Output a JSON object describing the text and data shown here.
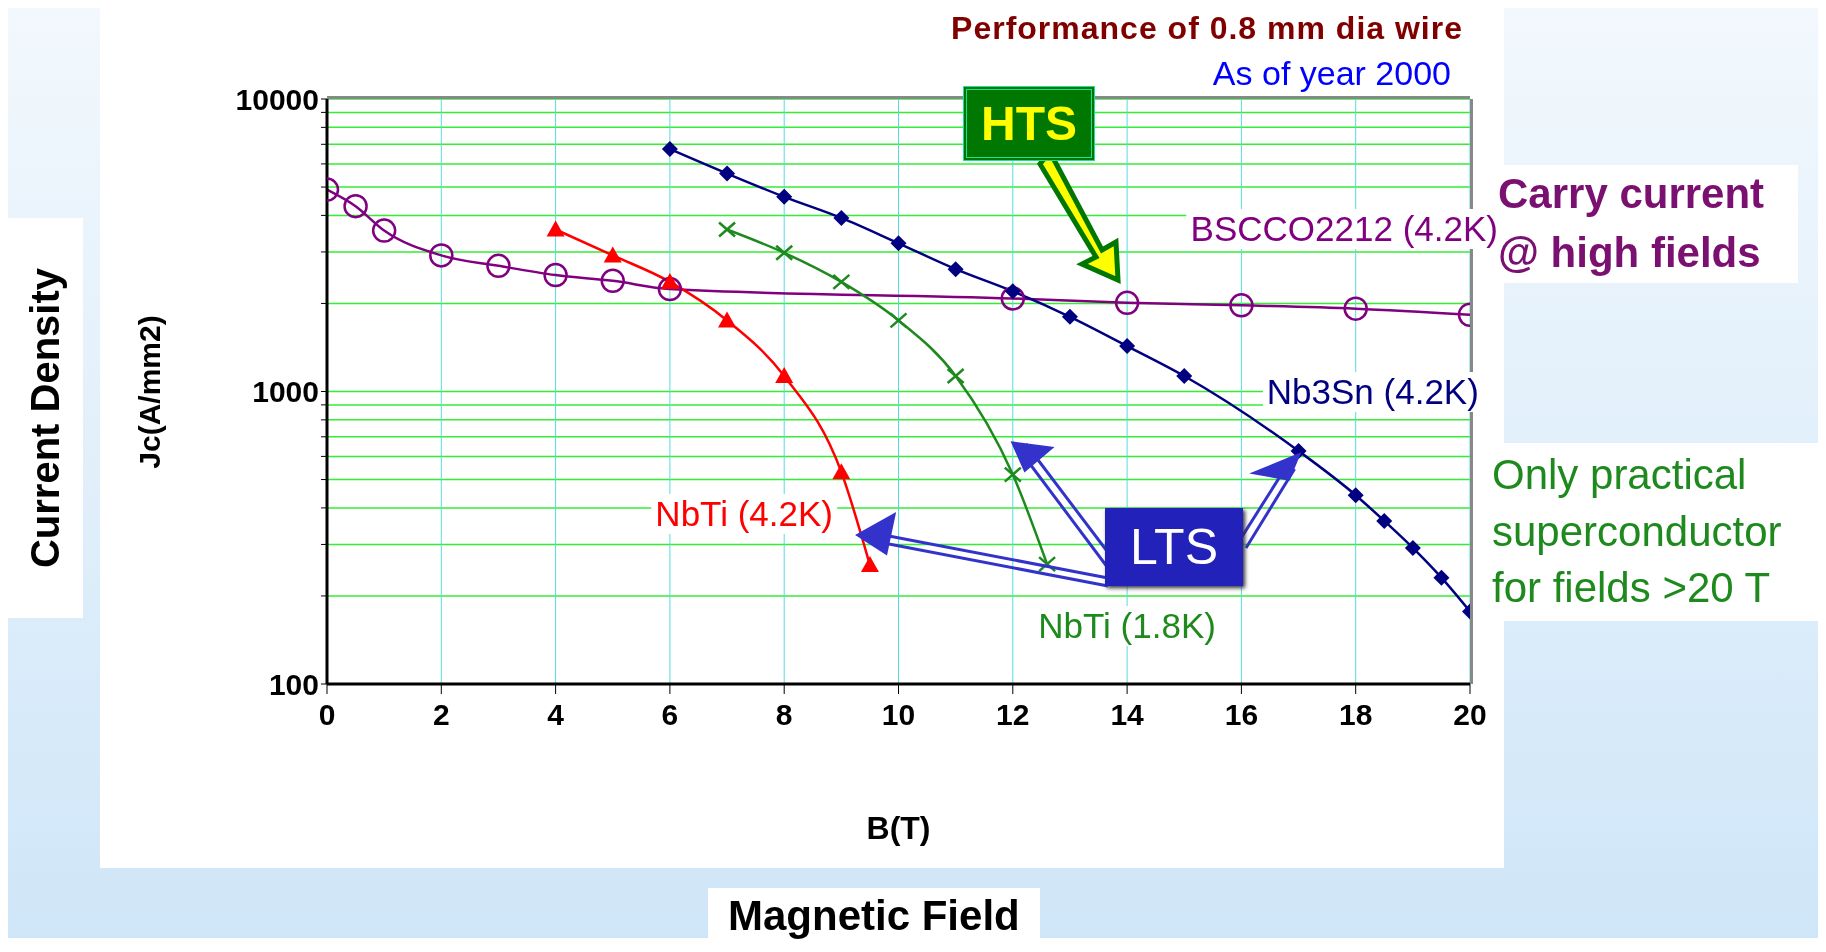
{
  "chart_data": {
    "type": "line",
    "title": "Performance of 0.8 mm dia wire",
    "subtitle": "As of year 2000",
    "xlabel": "B(T)",
    "ylabel": "Jc(A/mm2)",
    "annotations": [
      "Current Density",
      "Magnetic Field",
      "Carry current @ high fields",
      "Only practical superconductor for fields >20 T",
      "HTS",
      {
        "text": "LTS",
        "x": 17,
        "y": 626
      }
    ],
    "log": "y",
    "grid": true,
    "xlim": [
      0,
      20
    ],
    "xticks": [
      0,
      2,
      4,
      6,
      8,
      10,
      12,
      14,
      16,
      18,
      20
    ],
    "ylim": [
      100,
      10000
    ],
    "yticks": [
      100,
      {
        "value": 200,
        "label": null
      },
      {
        "value": 300,
        "label": null
      },
      {
        "value": 400,
        "label": null
      },
      {
        "value": 500,
        "label": null
      },
      {
        "value": 600,
        "label": null
      },
      {
        "value": 700,
        "label": null
      },
      {
        "value": 800,
        "label": null
      },
      {
        "value": 900,
        "label": null
      },
      1000,
      {
        "value": 2000,
        "label": null
      },
      {
        "value": 3000,
        "label": null
      },
      {
        "value": 4000,
        "label": null
      },
      {
        "value": 5000,
        "label": null
      },
      {
        "value": 6000,
        "label": null
      },
      {
        "value": 7000,
        "label": null
      },
      {
        "value": 8000,
        "label": null
      },
      {
        "value": 9000,
        "label": null
      },
      10000
    ],
    "series": [
      {
        "name": "BSCCO2212 (4.2K)",
        "color": "#800080",
        "marker": "circle",
        "x": [
          0,
          0.5,
          1,
          2,
          3,
          4,
          5,
          6,
          12,
          14,
          16,
          18,
          20
        ],
        "values": [
          4900,
          4300,
          3550,
          2920,
          2690,
          2500,
          2390,
          2240,
          2080,
          2010,
          1970,
          1920,
          1830
        ]
      },
      {
        "name": "NbTi (4.2K)",
        "color": "#ff0000",
        "marker": "triangle",
        "x": [
          4,
          5,
          6,
          7,
          8,
          9,
          9.5
        ],
        "values": [
          3580,
          2920,
          2370,
          1750,
          1130,
          530,
          255
        ]
      },
      {
        "name": "NbTi (1.8K)",
        "color": "#1e8a1e",
        "marker": "cross",
        "x": [
          7,
          8,
          9,
          10,
          11,
          12,
          12.6
        ],
        "values": [
          3580,
          2980,
          2370,
          1750,
          1130,
          520,
          257
        ]
      },
      {
        "name": "Nb3Sn (4.2K)",
        "color": "#000080",
        "marker": "diamond",
        "x": [
          6,
          7,
          8,
          9,
          10,
          11,
          12,
          13,
          14,
          15,
          17,
          18,
          18.5,
          19,
          19.5,
          20
        ],
        "values": [
          6740,
          5560,
          4630,
          3920,
          3210,
          2620,
          2200,
          1800,
          1430,
          1130,
          626,
          442,
          361,
          292,
          231,
          177
        ]
      }
    ]
  }
}
